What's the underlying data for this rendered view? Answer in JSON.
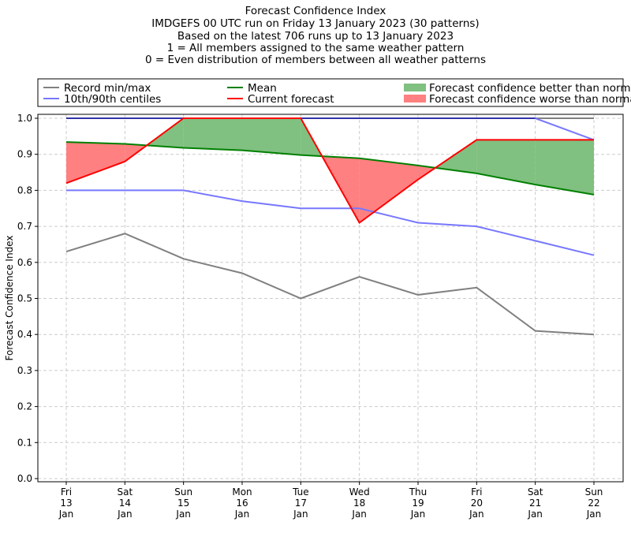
{
  "chart_data": {
    "type": "line",
    "title_lines": [
      "Forecast Confidence Index",
      "IMDGEFS 00 UTC run on Friday 13 January 2023 (30 patterns)",
      "Based on the latest 706 runs up to 13 January 2023",
      "1 = All members assigned to the same weather pattern",
      "0 = Even distribution of members between all weather patterns"
    ],
    "ylabel": "Forecast Confidence Index",
    "xlabel": "",
    "ylim": [
      0,
      1.0
    ],
    "yticks": [
      "0.0",
      "0.1",
      "0.2",
      "0.3",
      "0.4",
      "0.5",
      "0.6",
      "0.7",
      "0.8",
      "0.9",
      "1.0"
    ],
    "grid": true,
    "legend_position": "top, above plot",
    "categories": [
      [
        "Fri",
        "13",
        "Jan"
      ],
      [
        "Sat",
        "14",
        "Jan"
      ],
      [
        "Sun",
        "15",
        "Jan"
      ],
      [
        "Mon",
        "16",
        "Jan"
      ],
      [
        "Tue",
        "17",
        "Jan"
      ],
      [
        "Wed",
        "18",
        "Jan"
      ],
      [
        "Thu",
        "19",
        "Jan"
      ],
      [
        "Fri",
        "20",
        "Jan"
      ],
      [
        "Sat",
        "21",
        "Jan"
      ],
      [
        "Sun",
        "22",
        "Jan"
      ]
    ],
    "series": [
      {
        "name": "Record min/max",
        "color": "#808080",
        "min": [
          0.63,
          0.68,
          0.61,
          0.57,
          0.5,
          0.56,
          0.51,
          0.53,
          0.41,
          0.4
        ],
        "max": [
          1,
          1,
          1,
          1,
          1,
          1,
          1,
          1,
          1,
          1
        ]
      },
      {
        "name": "10th/90th centiles",
        "color": "#7777ff",
        "p10": [
          0.8,
          0.8,
          0.8,
          0.77,
          0.75,
          0.75,
          0.71,
          0.7,
          0.66,
          0.62
        ],
        "p90": [
          1,
          1,
          1,
          1,
          1,
          1,
          1,
          1,
          1,
          0.94
        ]
      },
      {
        "name": "Mean",
        "color": "#008000",
        "values": [
          0.934,
          0.929,
          0.918,
          0.911,
          0.898,
          0.889,
          0.869,
          0.847,
          0.816,
          0.788
        ]
      },
      {
        "name": "Current forecast",
        "color": "#ff0000",
        "values": [
          0.82,
          0.88,
          1.0,
          1.0,
          1.0,
          0.71,
          0.83,
          0.94,
          0.94,
          0.94
        ]
      }
    ],
    "fills": [
      {
        "name": "Forecast confidence better than normal",
        "color": "#80c080"
      },
      {
        "name": "Forecast confidence worse than normal",
        "color": "#ff8080"
      }
    ]
  }
}
